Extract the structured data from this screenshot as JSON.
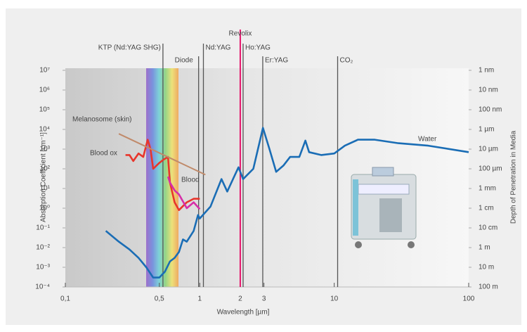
{
  "chart_data": {
    "type": "line",
    "xlabel": "Wavelength [µm]",
    "ylabel": "Absorption Coefficient [cm⁻¹]",
    "y2label": "Depth of Penetration in Media",
    "xlog": true,
    "ylog": true,
    "xlim": [
      0.1,
      100
    ],
    "xticks": [
      {
        "value": 0.1,
        "label": "0,1"
      },
      {
        "value": 0.5,
        "label": "0,5"
      },
      1,
      2,
      3,
      10,
      100
    ],
    "ylim": [
      0.0001,
      10000000
    ],
    "yticks": [
      {
        "value": 10000000,
        "label": "10⁷"
      },
      {
        "value": 1000000,
        "label": "10⁶"
      },
      {
        "value": 100000,
        "label": "10⁵"
      },
      {
        "value": 10000,
        "label": "10⁴"
      },
      {
        "value": 1000,
        "label": "10³"
      },
      {
        "value": 100,
        "label": "10²"
      },
      {
        "value": 10,
        "label": "10¹"
      },
      {
        "value": 1,
        "label": "10⁰"
      },
      {
        "value": 0.1,
        "label": "10⁻¹"
      },
      {
        "value": 0.01,
        "label": "10⁻²"
      },
      {
        "value": 0.001,
        "label": "10⁻³"
      },
      {
        "value": 0.0001,
        "label": "10⁻⁴"
      }
    ],
    "y2lim": [
      100,
      1e-09
    ],
    "y2ticks": [
      {
        "value": 1e-09,
        "label": "1 nm"
      },
      {
        "value": 1e-08,
        "label": "10 nm"
      },
      {
        "value": 1e-07,
        "label": "100 nm"
      },
      {
        "value": 1e-06,
        "label": "1 µm"
      },
      {
        "value": 1e-05,
        "label": "10 µm"
      },
      {
        "value": 0.0001,
        "label": "100 µm"
      },
      {
        "value": 0.001,
        "label": "1 mm"
      },
      {
        "value": 0.01,
        "label": "1 cm"
      },
      {
        "value": 0.1,
        "label": "10 cm"
      },
      {
        "value": 1,
        "label": "1 m"
      },
      {
        "value": 10,
        "label": "10 m"
      },
      {
        "value": 100,
        "label": "100 m"
      }
    ],
    "series": [
      {
        "name": "Water",
        "color": "#1a6db5",
        "x": [
          0.2,
          0.25,
          0.3,
          0.35,
          0.4,
          0.45,
          0.5,
          0.55,
          0.6,
          0.65,
          0.7,
          0.75,
          0.8,
          0.9,
          0.97,
          1.0,
          1.2,
          1.45,
          1.6,
          1.94,
          2.1,
          2.5,
          2.95,
          3.3,
          3.7,
          4.2,
          4.7,
          5.5,
          6.1,
          6.5,
          8,
          10,
          12,
          15,
          20,
          30,
          50,
          100
        ],
        "values": [
          0.07,
          0.02,
          0.008,
          0.003,
          0.001,
          0.0003,
          0.0003,
          0.0006,
          0.002,
          0.003,
          0.006,
          0.026,
          0.02,
          0.07,
          0.45,
          0.3,
          1.2,
          30,
          7,
          120,
          30,
          100,
          12000,
          1000,
          70,
          150,
          400,
          400,
          2700,
          700,
          500,
          600,
          1500,
          3000,
          3000,
          2000,
          1500,
          700
        ]
      },
      {
        "name": "Blood ox",
        "color": "#e8352b",
        "x": [
          0.28,
          0.3,
          0.32,
          0.35,
          0.38,
          0.41,
          0.43,
          0.45,
          0.5,
          0.54,
          0.58,
          0.6,
          0.65,
          0.7,
          0.8,
          0.9,
          1.0
        ],
        "values": [
          500,
          500,
          250,
          600,
          400,
          3000,
          1000,
          100,
          200,
          300,
          400,
          20,
          2,
          0.8,
          2,
          3,
          3
        ]
      },
      {
        "name": "Blood",
        "color": "#d62ea8",
        "x": [
          0.58,
          0.6,
          0.65,
          0.7,
          0.8,
          0.9,
          1.0
        ],
        "values": [
          40,
          20,
          8,
          5,
          1,
          2,
          0.9
        ]
      },
      {
        "name": "Melanosome (skin)",
        "color": "#c08a6a",
        "x": [
          0.25,
          1.1
        ],
        "values": [
          6000,
          50
        ]
      }
    ],
    "lasers": [
      {
        "name": "KTP (Nd:YAG SHG)",
        "wavelength": 0.532,
        "color": "#555555"
      },
      {
        "name": "Diode",
        "wavelength": 0.98,
        "color": "#555555"
      },
      {
        "name": "Nd:YAG",
        "wavelength": 1.064,
        "color": "#555555"
      },
      {
        "name": "Revolix",
        "wavelength": 2.0,
        "color": "#e5156b"
      },
      {
        "name": "Ho:YAG",
        "wavelength": 2.1,
        "color": "#555555"
      },
      {
        "name": "Er:YAG",
        "wavelength": 2.94,
        "color": "#555555"
      },
      {
        "name": "CO₂",
        "wavelength": 10.6,
        "color": "#555555"
      }
    ]
  }
}
